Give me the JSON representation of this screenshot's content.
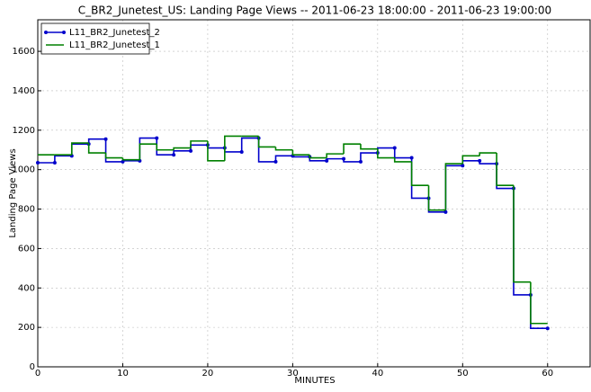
{
  "chart_data": {
    "type": "step",
    "title": "C_BR2_Junetest_US:  Landing Page Views -- 2011-06-23 18:00:00 - 2011-06-23 19:00:00",
    "x_label": "MINUTES",
    "y_label": "Landing Page Views",
    "x": [
      0,
      2,
      4,
      6,
      8,
      10,
      12,
      14,
      16,
      18,
      20,
      22,
      24,
      26,
      28,
      30,
      32,
      34,
      36,
      38,
      40,
      42,
      44,
      46,
      48,
      50,
      52,
      54,
      56,
      58,
      60
    ],
    "series": [
      {
        "name": "L11_BR2_Junetest_2",
        "color": "#0000cc",
        "markers": true,
        "values": [
          1035,
          1035,
          1070,
          1130,
          1155,
          1040,
          1045,
          1160,
          1075,
          1095,
          1125,
          1110,
          1090,
          1160,
          1040,
          1070,
          1065,
          1045,
          1055,
          1040,
          1085,
          1110,
          1060,
          855,
          785,
          1020,
          1045,
          1030,
          905,
          365,
          195
        ]
      },
      {
        "name": "L11_BR2_Junetest_1",
        "color": "#008000",
        "markers": false,
        "values": [
          1075,
          1075,
          1075,
          1135,
          1085,
          1060,
          1050,
          1130,
          1100,
          1110,
          1145,
          1045,
          1170,
          1170,
          1115,
          1100,
          1075,
          1060,
          1080,
          1130,
          1105,
          1060,
          1040,
          920,
          795,
          1030,
          1070,
          1085,
          920,
          430,
          220
        ]
      }
    ],
    "xlim": [
      0,
      65
    ],
    "ylim": [
      0,
      1760
    ],
    "xticks": [
      0,
      10,
      20,
      30,
      40,
      50,
      60
    ],
    "yticks": [
      0,
      200,
      400,
      600,
      800,
      1000,
      1200,
      1400,
      1600
    ],
    "grid": true,
    "legend": "upper left"
  }
}
